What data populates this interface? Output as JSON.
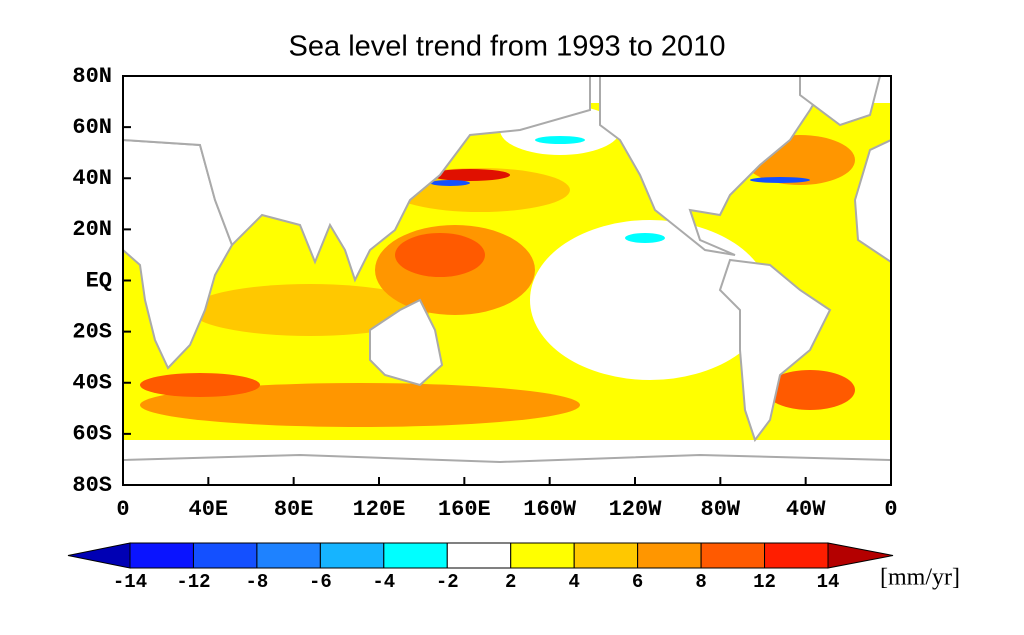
{
  "map": {
    "title": "Sea level trend from 1993 to 2010",
    "lat_labels": [
      "80N",
      "60N",
      "40N",
      "20N",
      "EQ",
      "20S",
      "40S",
      "60S",
      "80S"
    ],
    "lon_labels": [
      "0",
      "40E",
      "80E",
      "120E",
      "160E",
      "160W",
      "120W",
      "80W",
      "40W",
      "0"
    ],
    "colorbar": {
      "levels": [
        -14,
        -12,
        -8,
        -6,
        -4,
        -2,
        2,
        4,
        6,
        8,
        12,
        14
      ],
      "colors": [
        "#0000b4",
        "#0a14ff",
        "#1450ff",
        "#1e82ff",
        "#16b4ff",
        "#00ffff",
        "#ffffff",
        "#ffff00",
        "#ffc800",
        "#ff9600",
        "#ff5a00",
        "#ff1e00",
        "#b40000"
      ],
      "unit": "[mm/yr]"
    }
  }
}
